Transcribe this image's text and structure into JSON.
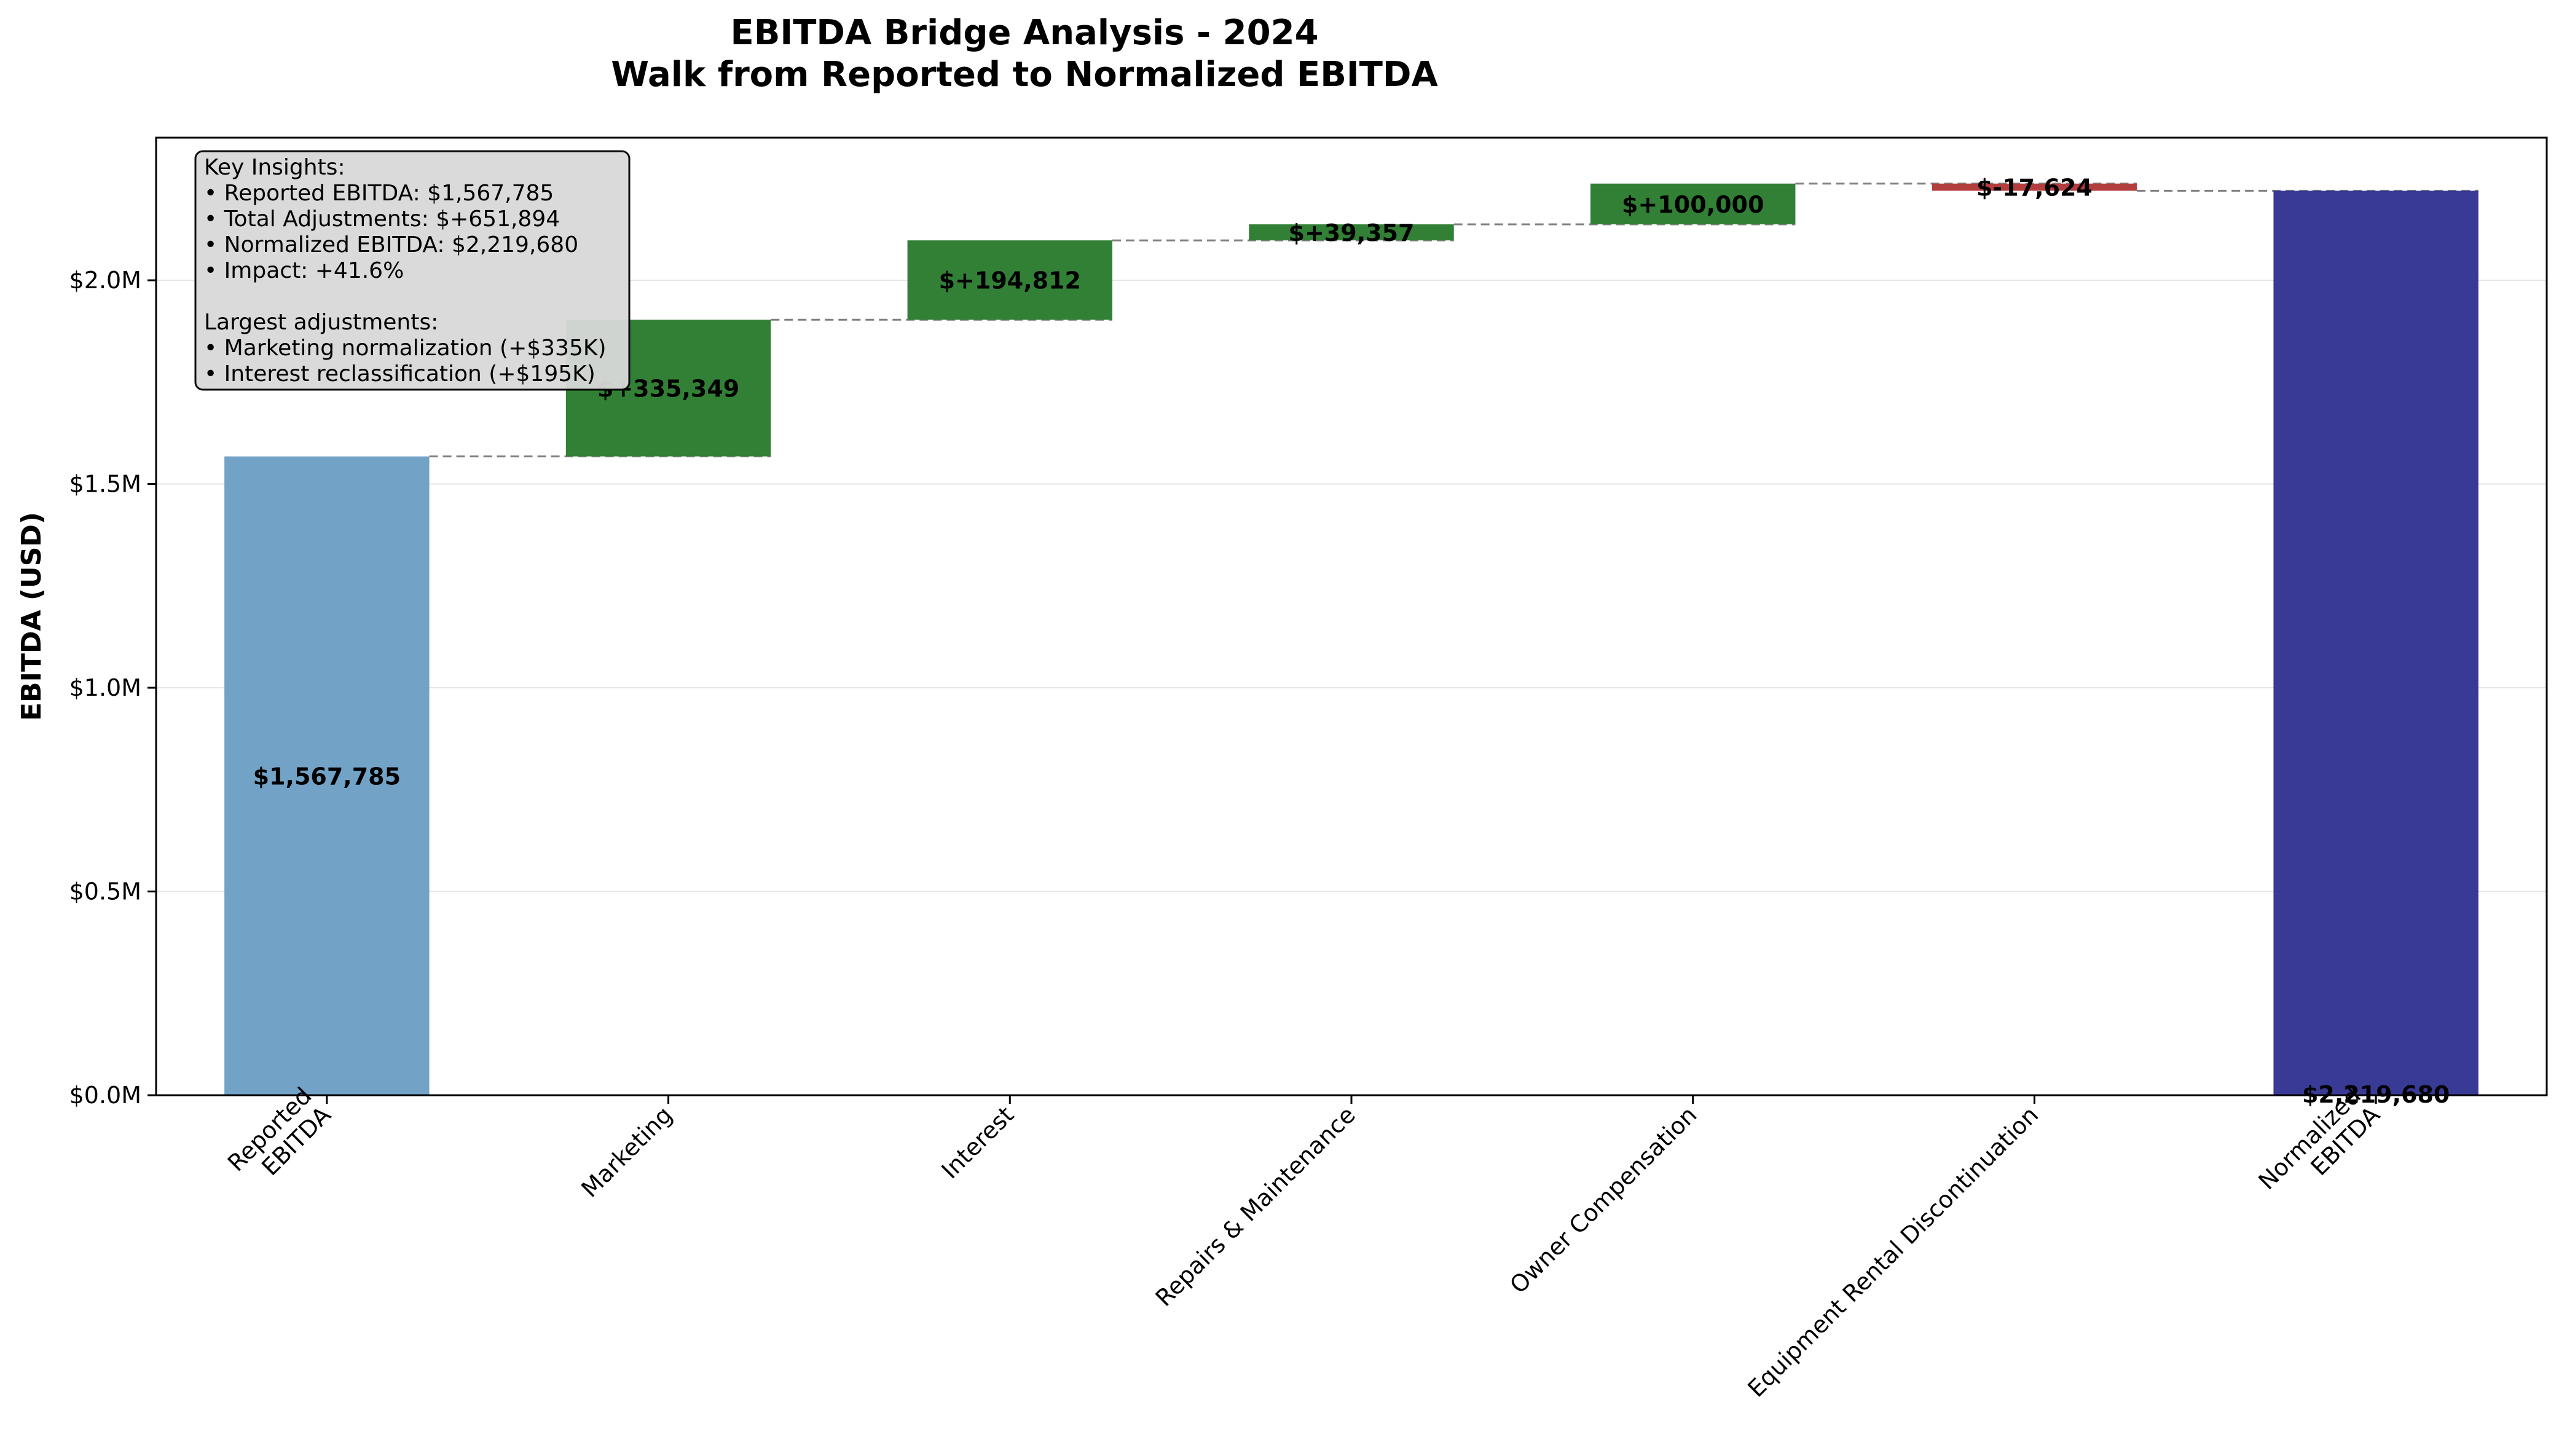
{
  "chart_data": {
    "type": "bar",
    "subtype": "waterfall",
    "title": "EBITDA Bridge Analysis - 2024",
    "subtitle": "Walk from Reported to Normalized EBITDA",
    "xlabel": "",
    "ylabel": "EBITDA (USD)",
    "ylim": [
      0,
      2350000
    ],
    "yticks": [
      {
        "value": 0,
        "label": "$0.0M"
      },
      {
        "value": 500000,
        "label": "$0.5M"
      },
      {
        "value": 1000000,
        "label": "$1.0M"
      },
      {
        "value": 1500000,
        "label": "$1.5M"
      },
      {
        "value": 2000000,
        "label": "$2.0M"
      }
    ],
    "grid": "horizontal",
    "steps": [
      {
        "category": [
          "Reported",
          "EBITDA"
        ],
        "kind": "total",
        "start": 0,
        "end": 1567785,
        "value": 1567785,
        "label": "$1,567,785"
      },
      {
        "category": [
          "Marketing"
        ],
        "kind": "increase",
        "start": 1567785,
        "end": 1903134,
        "value": 335349,
        "label": "$+335,349"
      },
      {
        "category": [
          "Interest"
        ],
        "kind": "increase",
        "start": 1903134,
        "end": 2097946,
        "value": 194812,
        "label": "$+194,812"
      },
      {
        "category": [
          "Repairs & Maintenance"
        ],
        "kind": "increase",
        "start": 2097946,
        "end": 2137303,
        "value": 39357,
        "label": "$+39,357"
      },
      {
        "category": [
          "Owner Compensation"
        ],
        "kind": "increase",
        "start": 2137303,
        "end": 2237303,
        "value": 100000,
        "label": "$+100,000"
      },
      {
        "category": [
          "Equipment Rental Discontinuation"
        ],
        "kind": "decrease",
        "start": 2237303,
        "end": 2219680,
        "value": -17624,
        "label": "$-17,624"
      },
      {
        "category": [
          "Normalized",
          "EBITDA"
        ],
        "kind": "total",
        "start": 0,
        "end": 2219680,
        "value": 2219680,
        "label": "$2,219,680"
      }
    ],
    "colors": {
      "reported": "#6b9dc4",
      "increase": "#2e7d32",
      "decrease": "#b23a3a",
      "normalized": "#2e2f8f",
      "connector": "#808080",
      "grid": "#e6e6e6"
    },
    "annotation": {
      "placement": "top-left",
      "lines": [
        "Key Insights:",
        "• Reported EBITDA: $1,567,785",
        "• Total Adjustments: $+651,894",
        "• Normalized EBITDA: $2,219,680",
        "• Impact: +41.6%",
        "",
        "Largest adjustments:",
        "• Marketing normalization (+$335K)",
        "• Interest reclassification (+$195K)"
      ]
    }
  }
}
